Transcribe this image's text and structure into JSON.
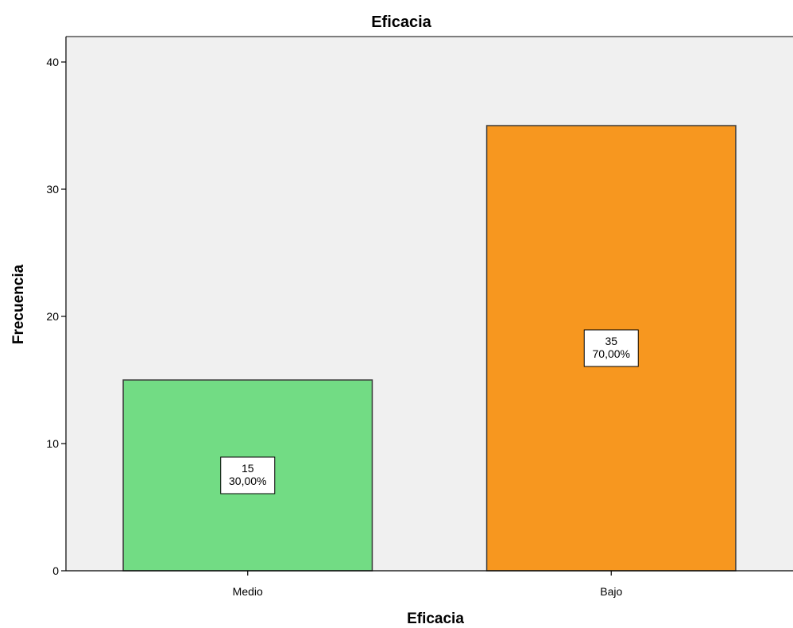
{
  "chart_data": {
    "type": "bar",
    "title": "Eficacia",
    "xlabel": "Eficacia",
    "ylabel": "Frecuencia",
    "categories": [
      "Medio",
      "Bajo"
    ],
    "values": [
      15,
      35
    ],
    "data_labels": [
      {
        "count": "15",
        "percent": "30,00%"
      },
      {
        "count": "35",
        "percent": "70,00%"
      }
    ],
    "colors": [
      "#72dc84",
      "#f7971f"
    ],
    "yticks": [
      "0",
      "10",
      "20",
      "30",
      "40"
    ],
    "ylim": [
      0,
      42
    ],
    "grid": false,
    "plot_background": "#f0f0f0"
  }
}
